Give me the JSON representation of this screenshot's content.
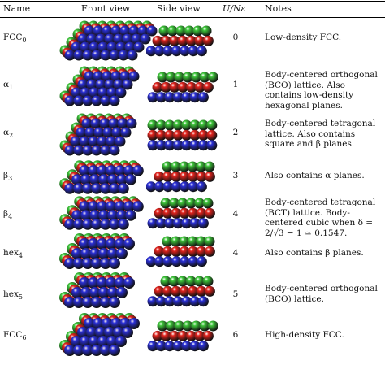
{
  "headers": {
    "name": "Name",
    "front": "Front view",
    "side": "Side view",
    "u": "U/Nε",
    "notes": "Notes"
  },
  "colors": {
    "red": "#e3231d",
    "green": "#3ec63a",
    "blue": "#2a2fd6"
  },
  "rows": [
    {
      "name": "FCC",
      "sub": "0",
      "u": "0",
      "notes": "Low-density FCC."
    },
    {
      "name": "α",
      "sub": "1",
      "u": "1",
      "notes": "Body-centered orthogonal (BCO) lattice. Also contains low-density hexagonal planes."
    },
    {
      "name": "α",
      "sub": "2",
      "u": "2",
      "notes": "Body-centered tetragonal lattice. Also contains square and β planes."
    },
    {
      "name": "β",
      "sub": "3",
      "u": "3",
      "notes": "Also contains α planes."
    },
    {
      "name": "β",
      "sub": "4",
      "u": "4",
      "notes": "Body-centered tetragonal (BCT) lattice. Body-centered cubic when δ = 2/√3 − 1 ≃ 0.1547."
    },
    {
      "name": "hex",
      "sub": "4",
      "u": "4",
      "notes": "Also contains β planes."
    },
    {
      "name": "hex",
      "sub": "5",
      "u": "5",
      "notes": "Body-centered orthogonal (BCO) lattice."
    },
    {
      "name": "FCC",
      "sub": "6",
      "u": "6",
      "notes": "High-density FCC."
    }
  ]
}
